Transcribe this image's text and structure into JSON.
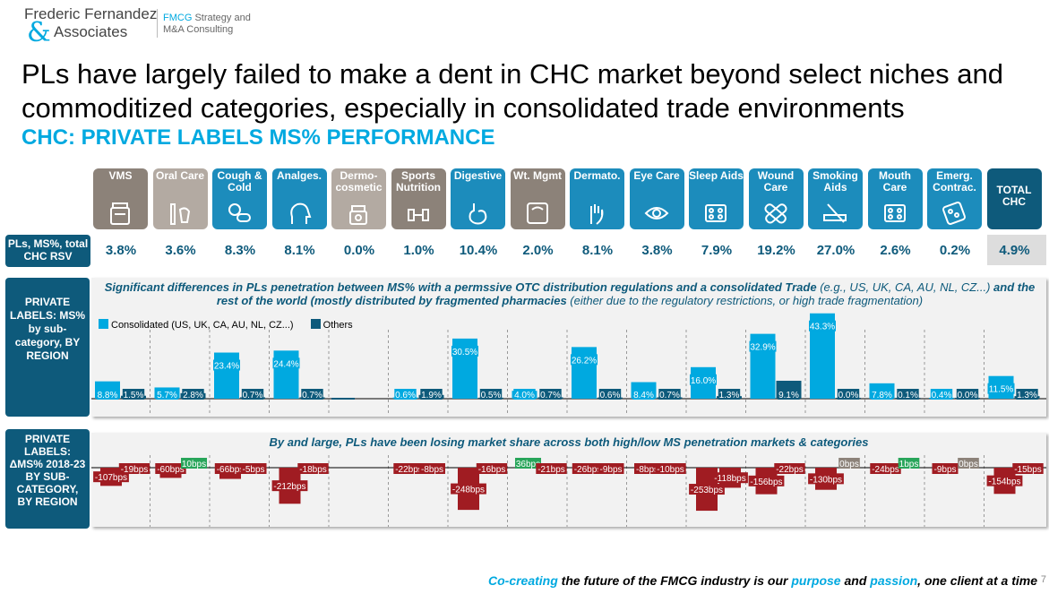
{
  "logo": {
    "line1": "Frederic Fernandez",
    "amp": "&",
    "line2": "Associates",
    "tag1": "FMCG",
    "tag1_rest": " Strategy and",
    "tag2": "M&A Consulting"
  },
  "title": "PLs have largely failed to make a dent in CHC market beyond select niches and commoditized categories, especially in consolidated trade environments",
  "subtitle": "CHC: PRIVATE LABELS MS% PERFORMANCE",
  "colors": {
    "dark": "#0e5a7b",
    "light": "#00a9e0",
    "gray": "#8c8279",
    "neg": "#a01c22",
    "pos": "#28a55a",
    "zero": "#8c8279"
  },
  "categories": [
    {
      "label": "VMS",
      "icon": "vitamin-jar-icon",
      "color": "#8c8279"
    },
    {
      "label": "Oral Care",
      "icon": "toothbrush-icon",
      "color": "#b3aaa2"
    },
    {
      "label": "Cough & Cold",
      "icon": "pills-icon",
      "color": "#1c8cbc"
    },
    {
      "label": "Analges.",
      "icon": "head-pain-icon",
      "color": "#1c8cbc"
    },
    {
      "label": "Dermo-cosmetic",
      "icon": "cream-jar-icon",
      "color": "#b3aaa2"
    },
    {
      "label": "Sports Nutrition",
      "icon": "dumbbell-icon",
      "color": "#8c8279"
    },
    {
      "label": "Digestive",
      "icon": "stomach-icon",
      "color": "#1c8cbc"
    },
    {
      "label": "Wt. Mgmt",
      "icon": "scale-icon",
      "color": "#8c8279"
    },
    {
      "label": "Dermato.",
      "icon": "hand-icon",
      "color": "#1c8cbc"
    },
    {
      "label": "Eye Care",
      "icon": "eye-icon",
      "color": "#1c8cbc"
    },
    {
      "label": "Sleep Aids",
      "icon": "blister-icon",
      "color": "#1c8cbc"
    },
    {
      "label": "Wound Care",
      "icon": "bandage-icon",
      "color": "#1c8cbc"
    },
    {
      "label": "Smoking Aids",
      "icon": "cigarette-icon",
      "color": "#1c8cbc"
    },
    {
      "label": "Mouth Care",
      "icon": "blister-icon",
      "color": "#1c8cbc"
    },
    {
      "label": "Emerg. Contrac.",
      "icon": "pill-pack-icon",
      "color": "#1c8cbc"
    },
    {
      "label": "TOTAL CHC",
      "icon": "",
      "color": "#0e5a7b"
    }
  ],
  "row1_label": "PLs, MS%, total CHC RSV",
  "row2_label": "PRIVATE LABELS: MS% by sub-category, BY REGION",
  "row3_label": "PRIVATE LABELS: ΔMS% 2018-23 BY SUB-CATEGORY, BY REGION",
  "note1": {
    "bold": "Significant differences in PLs penetration between MS% with a permssive OTC distribution regulations and a consolidated Trade",
    "i1": " (e.g., US, UK, CA, AU, NL, CZ...) ",
    "bold2": "and the rest of the world (mostly distributed by fragmented pharmacies",
    "i2": " (either due to the regulatory restrictions, or high trade fragmentation)"
  },
  "note2": "By and large, PLs have been losing market share across both high/low MS penetration markets & categories",
  "footer": {
    "a": "Co-creating",
    "b": " the future of the FMCG industry is our ",
    "c": "purpose",
    "d": " and ",
    "e": "passion",
    "f": ", one client at a time"
  },
  "page_number": "7",
  "chart_data": [
    {
      "type": "table",
      "title": "PLs, MS%, total CHC RSV",
      "categories": [
        "VMS",
        "Oral Care",
        "Cough & Cold",
        "Analges.",
        "Dermo-cosmetic",
        "Sports Nutrition",
        "Digestive",
        "Wt. Mgmt",
        "Dermato.",
        "Eye Care",
        "Sleep Aids",
        "Wound Care",
        "Smoking Aids",
        "Mouth Care",
        "Emerg. Contrac.",
        "TOTAL CHC"
      ],
      "values": [
        "3.8%",
        "3.6%",
        "8.3%",
        "8.1%",
        "0.0%",
        "1.0%",
        "10.4%",
        "2.0%",
        "8.1%",
        "3.8%",
        "7.9%",
        "19.2%",
        "27.0%",
        "2.6%",
        "0.2%",
        "4.9%"
      ]
    },
    {
      "type": "bar",
      "categories": [
        "VMS",
        "Oral Care",
        "Cough & Cold",
        "Analges.",
        "Dermo-cosmetic",
        "Sports Nutrition",
        "Digestive",
        "Wt. Mgmt",
        "Dermato.",
        "Eye Care",
        "Sleep Aids",
        "Wound Care",
        "Smoking Aids",
        "Mouth Care",
        "Emerg. Contrac.",
        "TOTAL CHC"
      ],
      "series": [
        {
          "name": "Consolidated (US, UK, CA, AU, NL, CZ...)",
          "color": "#00a9e0",
          "values": [
            8.8,
            5.7,
            23.4,
            24.4,
            null,
            0.6,
            30.5,
            4.0,
            26.2,
            8.4,
            16.0,
            32.9,
            43.3,
            7.8,
            0.4,
            11.5
          ],
          "labels": [
            "8.8%",
            "5.7%",
            "23.4%",
            "24.4%",
            "",
            "0.6%",
            "30.5%",
            "4.0%",
            "26.2%",
            "8.4%",
            "16.0%",
            "32.9%",
            "43.3%",
            "7.8%",
            "0.4%",
            "11.5%"
          ]
        },
        {
          "name": "Others",
          "color": "#0e5a7b",
          "values": [
            1.5,
            2.8,
            0.7,
            0.7,
            null,
            1.9,
            0.5,
            0.7,
            0.6,
            0.7,
            1.3,
            9.1,
            0.0,
            0.1,
            0.0,
            1.3
          ],
          "labels": [
            "1.5%",
            "2.8%",
            "0.7%",
            "0.7%",
            "",
            "1.9%",
            "0.5%",
            "0.7%",
            "0.6%",
            "0.7%",
            "1.3%",
            "9.1%",
            "0.0%",
            "0.1%",
            "0.0%",
            "1.3%"
          ]
        }
      ],
      "legend": "top-left"
    },
    {
      "type": "bar",
      "categories": [
        "VMS",
        "Oral Care",
        "Cough & Cold",
        "Analges.",
        "Dermo-cosmetic",
        "Sports Nutrition",
        "Digestive",
        "Wt. Mgmt",
        "Dermato.",
        "Eye Care",
        "Sleep Aids",
        "Wound Care",
        "Smoking Aids",
        "Mouth Care",
        "Emerg. Contrac.",
        "TOTAL CHC"
      ],
      "series": [
        {
          "name": "Consolidated (US, UK, CA, AU, NL, CZ...)",
          "values": [
            -107,
            -60,
            -66,
            -212,
            null,
            -22,
            -248,
            36,
            -26,
            -8,
            -253,
            -156,
            -130,
            -24,
            -9,
            -154
          ],
          "labels": [
            "-107bps",
            "-60bps",
            "-66bps",
            "-212bps",
            "",
            "-22bps",
            "-248bps",
            "36bps",
            "-26bps",
            "-8bps",
            "-253bps",
            "-156bps",
            "-130bps",
            "-24bps",
            "-9bps",
            "-154bps"
          ]
        },
        {
          "name": "Others",
          "values": [
            -19,
            10,
            -5,
            -18,
            null,
            -8,
            -16,
            -21,
            -9,
            -10,
            -118,
            -22,
            0,
            1,
            0,
            -15
          ],
          "labels": [
            "-19bps",
            "10bps",
            "-5bps",
            "-18bps",
            "",
            "-8bps",
            "-16bps",
            "-21bps",
            "-9bps",
            "-10bps",
            "-118bps",
            "-22bps",
            "0bps",
            "1bps",
            "0bps",
            "-15bps"
          ]
        }
      ]
    }
  ]
}
